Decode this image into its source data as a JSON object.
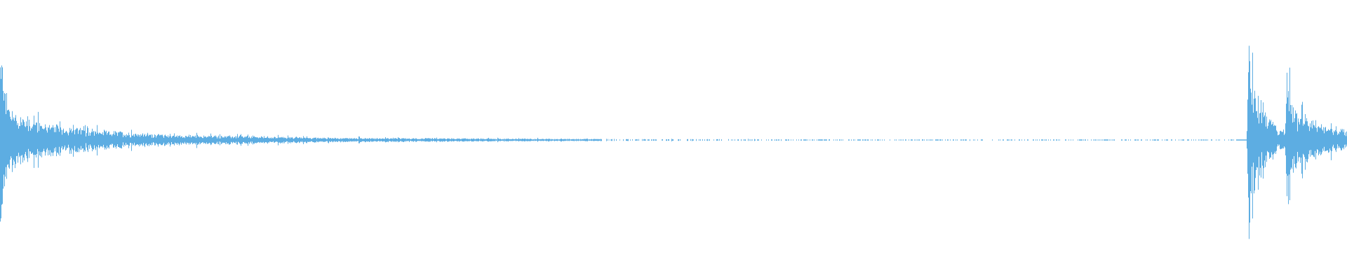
{
  "chart_data": {
    "type": "waveform",
    "title": "",
    "xlabel": "",
    "ylabel": "",
    "grid": false,
    "legend": "none",
    "color": "#5dade2",
    "background": "#ffffff"
  }
}
